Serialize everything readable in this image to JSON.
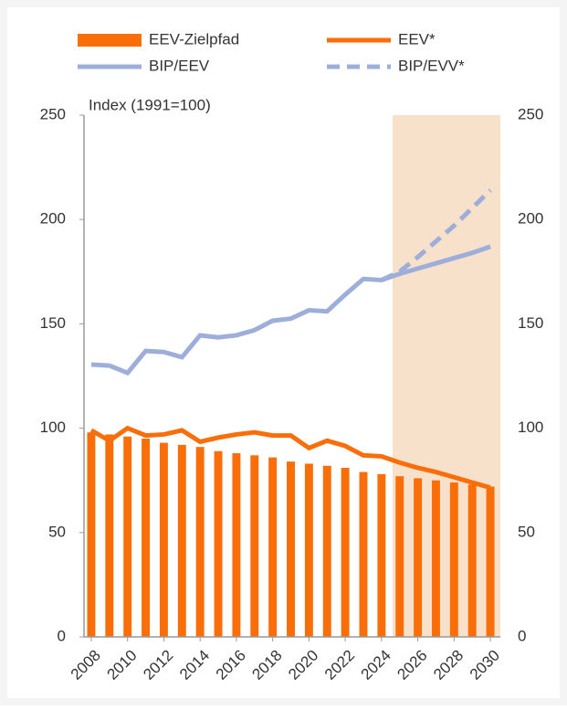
{
  "chart_data": {
    "type": "bar-line",
    "axis_title": "Index (1991=100)",
    "x": [
      2008,
      2009,
      2010,
      2011,
      2012,
      2013,
      2014,
      2015,
      2016,
      2017,
      2018,
      2019,
      2020,
      2021,
      2022,
      2023,
      2024,
      2025,
      2026,
      2027,
      2028,
      2029,
      2030
    ],
    "xlim": [
      2007.6,
      2030.55
    ],
    "xticks": [
      2008,
      2010,
      2012,
      2014,
      2016,
      2018,
      2020,
      2022,
      2024,
      2026,
      2028,
      2030
    ],
    "ylim": [
      0,
      250
    ],
    "yticks": [
      0,
      50,
      100,
      150,
      200,
      250
    ],
    "y2lim": [
      0,
      250
    ],
    "y2ticks": [
      0,
      50,
      100,
      150,
      200,
      250
    ],
    "series": [
      {
        "name": "EEV-Zielpfad",
        "kind": "bar",
        "color": "#fa6e0a",
        "values": [
          98,
          97,
          96,
          95,
          93,
          92,
          91,
          89,
          88,
          87,
          86,
          84,
          83,
          82,
          81,
          79,
          78,
          77,
          76,
          75,
          74,
          73,
          72
        ]
      },
      {
        "name": "EEV*",
        "kind": "line",
        "color": "#fa6e0a",
        "values": [
          99,
          94,
          100,
          96.5,
          97,
          99,
          93.5,
          95.5,
          97,
          98,
          96.5,
          96.5,
          90.5,
          94,
          91.5,
          87,
          86.5,
          83.5,
          81,
          79,
          76.5,
          74,
          71.5
        ]
      },
      {
        "name": "BIP/EEV",
        "kind": "line",
        "color": "#9eaedb",
        "values": [
          130.5,
          130,
          126.5,
          137,
          136.5,
          134,
          144.5,
          143.5,
          144.5,
          147,
          151.5,
          152.5,
          156.5,
          156,
          164,
          171.5,
          171,
          174,
          176.5,
          179,
          181.5,
          184,
          187
        ]
      },
      {
        "name": "BIP/EVV*",
        "kind": "line",
        "dashed": true,
        "color": "#9eaedb",
        "values": [
          null,
          null,
          null,
          null,
          null,
          null,
          null,
          null,
          null,
          null,
          null,
          null,
          null,
          null,
          null,
          null,
          171,
          175,
          182,
          189.5,
          197,
          205.5,
          214
        ]
      }
    ]
  }
}
